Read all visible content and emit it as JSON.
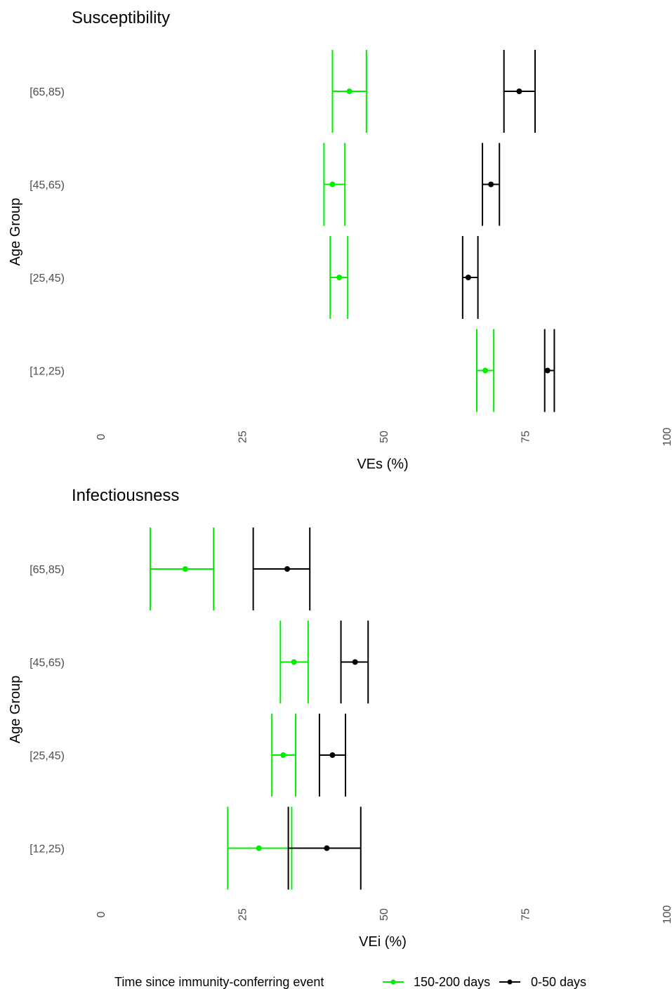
{
  "legend": {
    "title": "Time since immunity-conferring event",
    "entries": [
      {
        "label": "150-200 days",
        "color": "#00ee00"
      },
      {
        "label": "0-50 days",
        "color": "#000000"
      }
    ]
  },
  "chart_data": [
    {
      "type": "errorbar",
      "title": "Susceptibility",
      "xlabel": "VEs (%)",
      "ylabel": "Age Group",
      "xlim": [
        0,
        100
      ],
      "x_ticks": [
        "0",
        "25",
        "50",
        "75",
        "100"
      ],
      "categories": [
        "[65,85)",
        "[45,65)",
        "[25,45)",
        "[12,25)"
      ],
      "grid": false,
      "series": [
        {
          "name": "150-200 days",
          "color": "#00ee00",
          "points": [
            {
              "category": "[65,85)",
              "value": 44.0,
              "lower": 41.0,
              "upper": 47.0
            },
            {
              "category": "[45,65)",
              "value": 41.0,
              "lower": 39.5,
              "upper": 43.2
            },
            {
              "category": "[25,45)",
              "value": 42.2,
              "lower": 40.6,
              "upper": 43.7
            },
            {
              "category": "[12,25)",
              "value": 68.0,
              "lower": 66.5,
              "upper": 69.5
            }
          ]
        },
        {
          "name": "0-50 days",
          "color": "#000000",
          "points": [
            {
              "category": "[65,85)",
              "value": 74.0,
              "lower": 71.3,
              "upper": 76.8
            },
            {
              "category": "[45,65)",
              "value": 69.0,
              "lower": 67.5,
              "upper": 70.5
            },
            {
              "category": "[25,45)",
              "value": 65.0,
              "lower": 64.0,
              "upper": 66.7
            },
            {
              "category": "[12,25)",
              "value": 79.0,
              "lower": 78.5,
              "upper": 80.2
            }
          ]
        }
      ]
    },
    {
      "type": "errorbar",
      "title": "Infectiousness",
      "xlabel": "VEi (%)",
      "ylabel": "Age Group",
      "xlim": [
        0,
        100
      ],
      "x_ticks": [
        "0",
        "25",
        "50",
        "75",
        "100"
      ],
      "categories": [
        "[65,85)",
        "[45,65)",
        "[25,45)",
        "[12,25)"
      ],
      "grid": false,
      "series": [
        {
          "name": "150-200 days",
          "color": "#00ee00",
          "points": [
            {
              "category": "[65,85)",
              "value": 15.0,
              "lower": 8.8,
              "upper": 20.0
            },
            {
              "category": "[45,65)",
              "value": 34.2,
              "lower": 31.8,
              "upper": 36.7
            },
            {
              "category": "[25,45)",
              "value": 32.3,
              "lower": 30.3,
              "upper": 34.5
            },
            {
              "category": "[12,25)",
              "value": 28.0,
              "lower": 22.5,
              "upper": 33.8
            }
          ]
        },
        {
          "name": "0-50 days",
          "color": "#000000",
          "points": [
            {
              "category": "[65,85)",
              "value": 33.0,
              "lower": 27.0,
              "upper": 37.0
            },
            {
              "category": "[45,65)",
              "value": 45.0,
              "lower": 42.5,
              "upper": 47.3
            },
            {
              "category": "[25,45)",
              "value": 41.0,
              "lower": 38.7,
              "upper": 43.3
            },
            {
              "category": "[12,25)",
              "value": 40.0,
              "lower": 33.2,
              "upper": 46.0
            }
          ]
        }
      ]
    }
  ]
}
